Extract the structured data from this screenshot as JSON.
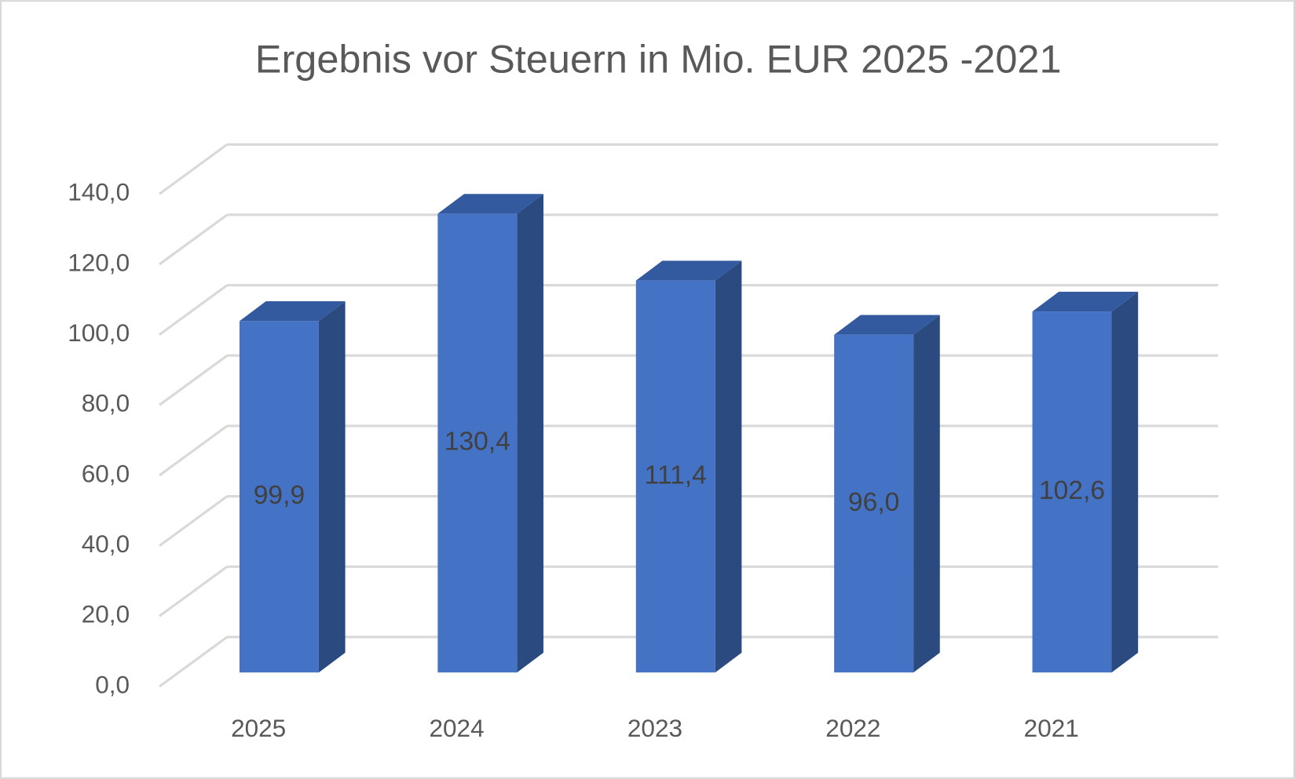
{
  "chart_data": {
    "type": "bar3d",
    "title": "Ergebnis vor Steuern in Mio. EUR 2025 -2021",
    "categories": [
      "2025",
      "2024",
      "2023",
      "2022",
      "2021"
    ],
    "values": [
      99.9,
      130.4,
      111.4,
      96.0,
      102.6
    ],
    "value_labels": [
      "99,9",
      "130,4",
      "111,4",
      "96,0",
      "102,6"
    ],
    "color": "#4472c4",
    "ylim": [
      0,
      140
    ],
    "yticks": [
      {
        "value": 0,
        "label": "0,0"
      },
      {
        "value": 20,
        "label": "20,0"
      },
      {
        "value": 40,
        "label": "40,0"
      },
      {
        "value": 60,
        "label": "60,0"
      },
      {
        "value": 80,
        "label": "80,0"
      },
      {
        "value": 100,
        "label": "100,0"
      },
      {
        "value": 120,
        "label": "120,0"
      },
      {
        "value": 140,
        "label": "140,0"
      }
    ],
    "grid": true
  }
}
